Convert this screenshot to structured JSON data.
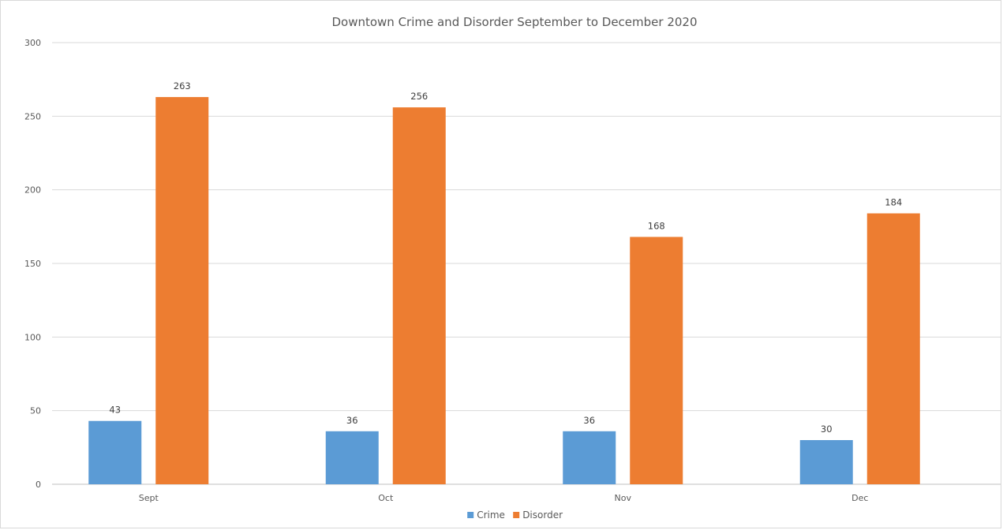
{
  "chart_data": {
    "type": "bar",
    "title": "Downtown Crime and Disorder September to December 2020",
    "categories": [
      "Sept",
      "Oct",
      "Nov",
      "Dec"
    ],
    "series": [
      {
        "name": "Crime",
        "color": "#5B9BD5",
        "values": [
          43,
          36,
          36,
          30
        ]
      },
      {
        "name": "Disorder",
        "color": "#ED7D31",
        "values": [
          263,
          256,
          168,
          184
        ]
      }
    ],
    "xlabel": "",
    "ylabel": "",
    "ylim": [
      0,
      300
    ],
    "yticks": [
      "0",
      "50",
      "100",
      "150",
      "200",
      "250",
      "300"
    ],
    "grid": true,
    "legend": "bottom"
  }
}
